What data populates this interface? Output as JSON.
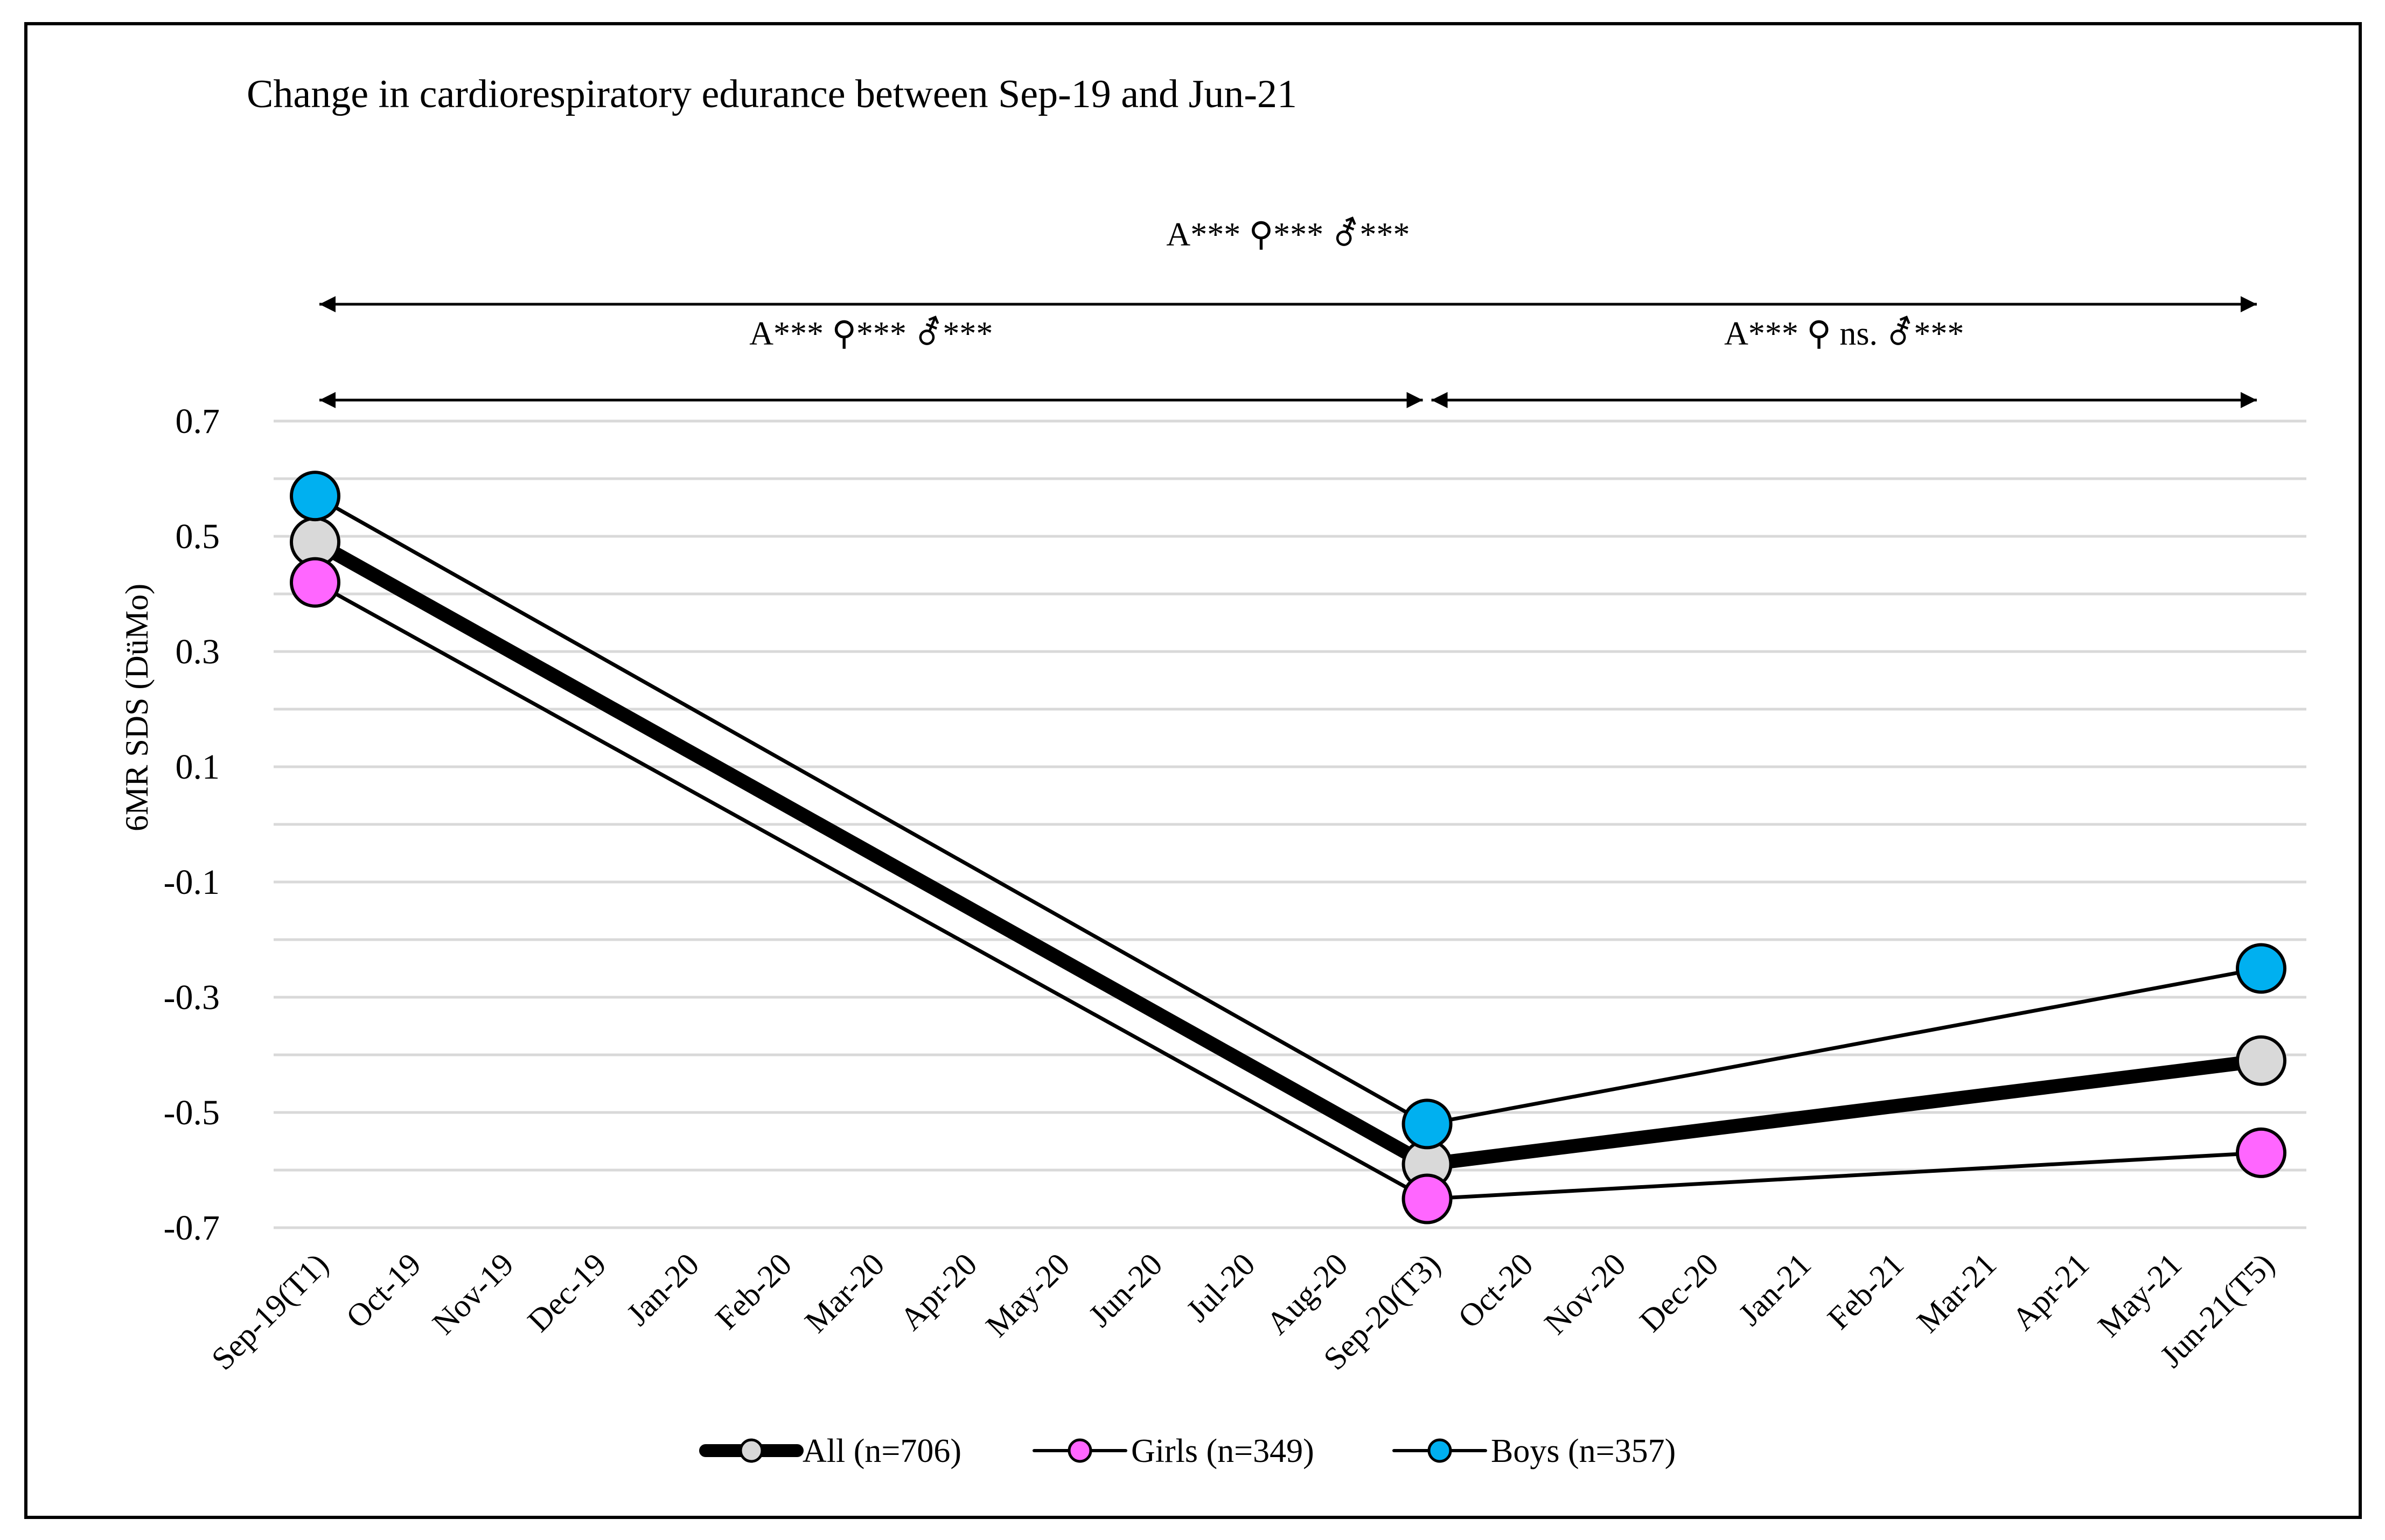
{
  "chart_data": {
    "type": "line",
    "title": "Change in cardiorespiratory edurance between Sep-19 and Jun-21",
    "ylabel": "6MR SDS (DüMo)",
    "xlabel": "",
    "ylim": [
      -0.7,
      0.7
    ],
    "yticks": [
      0.7,
      0.5,
      0.3,
      0.1,
      -0.1,
      -0.3,
      -0.5,
      -0.7
    ],
    "ytick_labels": [
      "0.7",
      "0.5",
      "0.3",
      "0.1",
      "-0.1",
      "-0.3",
      "-0.5",
      "-0.7"
    ],
    "grid": true,
    "legend_position": "bottom",
    "categories": [
      "Sep-19(T1)",
      "Oct-19",
      "Nov-19",
      "Dec-19",
      "Jan-20",
      "Feb-20",
      "Mar-20",
      "Apr-20",
      "May-20",
      "Jun-20",
      "Jul-20",
      "Aug-20",
      "Sep-20(T3)",
      "Oct-20",
      "Nov-20",
      "Dec-20",
      "Jan-21",
      "Feb-21",
      "Mar-21",
      "Apr-21",
      "May-21",
      "Jun-21(T5)"
    ],
    "series": [
      {
        "name": "All (n=706)",
        "color": "#d9d9d9",
        "line_color": "#000000",
        "thick": true,
        "points": [
          {
            "x": "Sep-19(T1)",
            "y": 0.49
          },
          {
            "x": "Sep-20(T3)",
            "y": -0.59
          },
          {
            "x": "Jun-21(T5)",
            "y": -0.41
          }
        ]
      },
      {
        "name": "Girls (n=349)",
        "color": "#ff66ff",
        "line_color": "#000000",
        "thick": false,
        "points": [
          {
            "x": "Sep-19(T1)",
            "y": 0.42
          },
          {
            "x": "Sep-20(T3)",
            "y": -0.65
          },
          {
            "x": "Jun-21(T5)",
            "y": -0.57
          }
        ]
      },
      {
        "name": "Boys (n=357)",
        "color": "#00b0f0",
        "line_color": "#000000",
        "thick": false,
        "points": [
          {
            "x": "Sep-19(T1)",
            "y": 0.57
          },
          {
            "x": "Sep-20(T3)",
            "y": -0.52
          },
          {
            "x": "Jun-21(T5)",
            "y": -0.25
          }
        ]
      }
    ],
    "annotations": [
      {
        "id": "overall",
        "from": "Sep-19(T1)",
        "to": "Jun-21(T5)",
        "text": "A*** ⚲*** ⚦***"
      },
      {
        "id": "t1-t3",
        "from": "Sep-19(T1)",
        "to": "Sep-20(T3)",
        "text": "A*** ⚲*** ⚦***"
      },
      {
        "id": "t3-t5",
        "from": "Sep-20(T3)",
        "to": "Jun-21(T5)",
        "text": "A*** ⚲ ns. ⚦***"
      }
    ]
  }
}
